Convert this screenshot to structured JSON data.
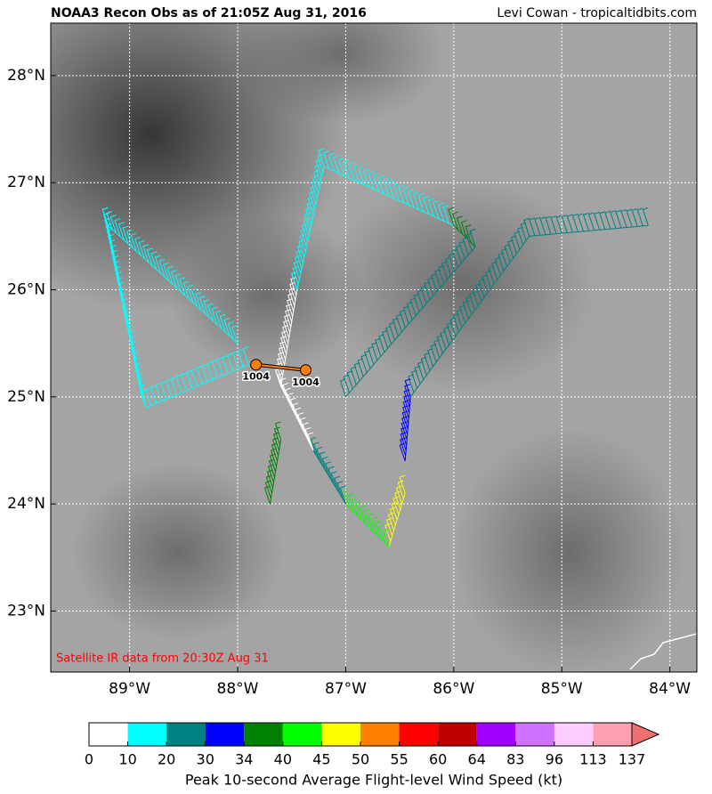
{
  "header": {
    "title": "NOAA3 Recon Obs as of 21:05Z Aug 31, 2016",
    "credit": "Levi Cowan - tropicaltidbits.com"
  },
  "map": {
    "xlim": [
      -89.73,
      -83.75
    ],
    "ylim": [
      22.43,
      28.49
    ],
    "grid": true,
    "note": "Satellite IR data from 20:30Z Aug 31",
    "yticks": [
      {
        "value": 23,
        "label": "23°N"
      },
      {
        "value": 24,
        "label": "24°N"
      },
      {
        "value": 25,
        "label": "25°N"
      },
      {
        "value": 26,
        "label": "26°N"
      },
      {
        "value": 27,
        "label": "27°N"
      },
      {
        "value": 28,
        "label": "28°N"
      }
    ],
    "xticks": [
      {
        "value": -89,
        "label": "89°W"
      },
      {
        "value": -88,
        "label": "88°W"
      },
      {
        "value": -87,
        "label": "87°W"
      },
      {
        "value": -86,
        "label": "86°W"
      },
      {
        "value": -85,
        "label": "85°W"
      },
      {
        "value": -84,
        "label": "84°W"
      }
    ],
    "centers": [
      {
        "lon": -87.83,
        "lat": 25.3,
        "pressure": 1004
      },
      {
        "lon": -87.37,
        "lat": 25.25,
        "pressure": 1004
      }
    ],
    "legs": [
      {
        "lon": [
          -84.2,
          -85.3
        ],
        "lat": [
          26.6,
          26.5
        ],
        "wind": 22
      },
      {
        "lon": [
          -85.3,
          -86.4
        ],
        "lat": [
          26.5,
          25.0
        ],
        "wind": 28
      },
      {
        "lon": [
          -86.4,
          -86.45
        ],
        "lat": [
          25.0,
          24.4
        ],
        "wind": 31
      },
      {
        "lon": [
          -86.45,
          -86.6
        ],
        "lat": [
          24.1,
          23.6
        ],
        "wind": 46
      },
      {
        "lon": [
          -86.6,
          -87.0
        ],
        "lat": [
          23.6,
          24.0
        ],
        "wind": 42
      },
      {
        "lon": [
          -87.0,
          -87.3
        ],
        "lat": [
          24.0,
          24.5
        ],
        "wind": 25
      },
      {
        "lon": [
          -87.3,
          -87.6
        ],
        "lat": [
          24.5,
          25.1
        ],
        "wind": 8
      },
      {
        "lon": [
          -87.6,
          -87.45
        ],
        "lat": [
          25.1,
          26.0
        ],
        "wind": 8
      },
      {
        "lon": [
          -87.45,
          -87.2
        ],
        "lat": [
          26.0,
          27.15
        ],
        "wind": 16
      },
      {
        "lon": [
          -87.2,
          -86.0
        ],
        "lat": [
          27.15,
          26.6
        ],
        "wind": 18
      },
      {
        "lon": [
          -86.0,
          -85.8
        ],
        "lat": [
          26.6,
          26.4
        ],
        "wind": 36
      },
      {
        "lon": [
          -85.8,
          -87.0
        ],
        "lat": [
          26.4,
          25.0
        ],
        "wind": 24
      },
      {
        "lon": [
          -87.9,
          -88.85
        ],
        "lat": [
          25.3,
          24.9
        ],
        "wind": 15
      },
      {
        "lon": [
          -88.85,
          -89.2
        ],
        "lat": [
          24.9,
          26.6
        ],
        "wind": 14
      },
      {
        "lon": [
          -89.2,
          -88.0
        ],
        "lat": [
          26.6,
          25.5
        ],
        "wind": 16
      },
      {
        "lon": [
          -87.6,
          -87.7
        ],
        "lat": [
          24.6,
          24.0
        ],
        "wind": 37
      }
    ]
  },
  "colorbar": {
    "label": "Peak 10-second Average Flight-level Wind Speed (kt)",
    "ticks": [
      0,
      10,
      20,
      30,
      34,
      40,
      45,
      50,
      55,
      60,
      64,
      83,
      96,
      113,
      137
    ],
    "colors": [
      "#ffffff",
      "#00ffff",
      "#008080",
      "#0000ff",
      "#008000",
      "#00ff00",
      "#ffff00",
      "#ff7f00",
      "#ff0000",
      "#c00000",
      "#a000ff",
      "#d070ff",
      "#ffccff",
      "#ffa0b0",
      "#f07070"
    ]
  }
}
